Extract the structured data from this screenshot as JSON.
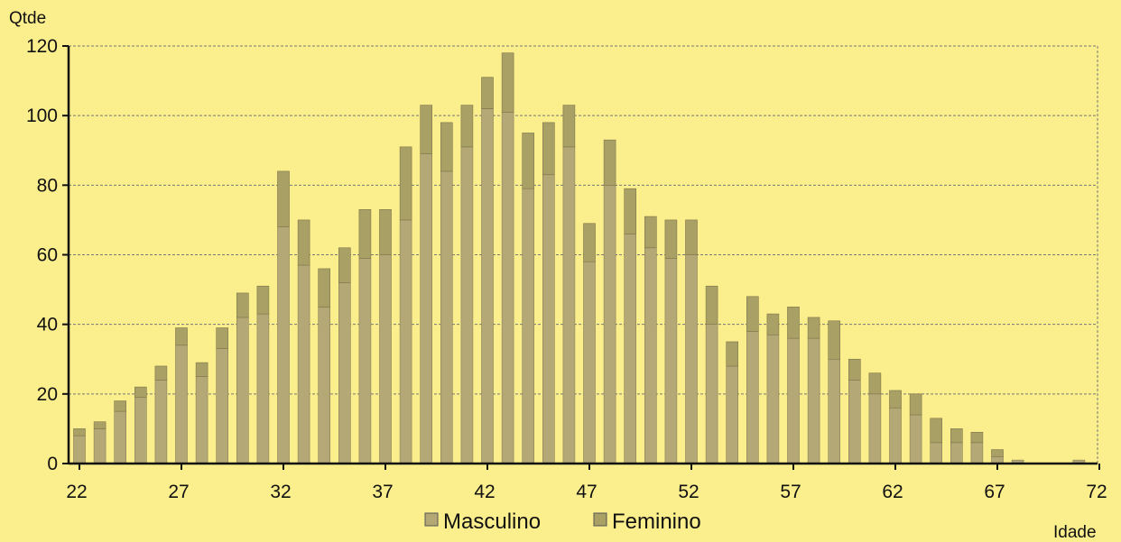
{
  "chart_data": {
    "type": "bar",
    "stacked": true,
    "ylabel": "Qtde",
    "xlabel": "Idade",
    "ylim": [
      0,
      120
    ],
    "yticks": [
      0,
      20,
      40,
      60,
      80,
      100,
      120
    ],
    "xticks": [
      22,
      27,
      32,
      37,
      42,
      47,
      52,
      57,
      62,
      67,
      72
    ],
    "xlim": [
      22,
      72
    ],
    "grid": true,
    "legend_position": "bottom",
    "colors": {
      "background": "#fbee8c",
      "masculino": "#b5a877",
      "feminino": "#a9a066",
      "grid": "#777777",
      "axis": "#111111"
    },
    "x": [
      22,
      23,
      24,
      25,
      26,
      27,
      28,
      29,
      30,
      31,
      32,
      33,
      34,
      35,
      36,
      37,
      38,
      39,
      40,
      41,
      42,
      43,
      44,
      45,
      46,
      47,
      48,
      49,
      50,
      51,
      52,
      53,
      54,
      55,
      56,
      57,
      58,
      59,
      60,
      61,
      62,
      63,
      64,
      65,
      66,
      67,
      68,
      69,
      70,
      71
    ],
    "series": [
      {
        "name": "Masculino",
        "values": [
          8,
          10,
          15,
          19,
          24,
          34,
          25,
          33,
          42,
          43,
          68,
          57,
          45,
          52,
          59,
          60,
          70,
          89,
          84,
          91,
          102,
          101,
          79,
          83,
          91,
          58,
          80,
          66,
          62,
          59,
          60,
          40,
          28,
          38,
          37,
          36,
          36,
          30,
          24,
          20,
          16,
          14,
          6,
          6,
          6,
          2,
          1,
          0,
          0,
          1
        ]
      },
      {
        "name": "Feminino",
        "values": [
          2,
          2,
          3,
          3,
          4,
          5,
          4,
          6,
          7,
          8,
          16,
          13,
          11,
          10,
          14,
          13,
          21,
          14,
          14,
          12,
          9,
          17,
          16,
          15,
          12,
          11,
          13,
          13,
          9,
          11,
          10,
          11,
          7,
          10,
          6,
          9,
          6,
          11,
          6,
          6,
          5,
          6,
          7,
          4,
          3,
          2,
          0,
          0,
          0,
          0
        ]
      }
    ]
  }
}
